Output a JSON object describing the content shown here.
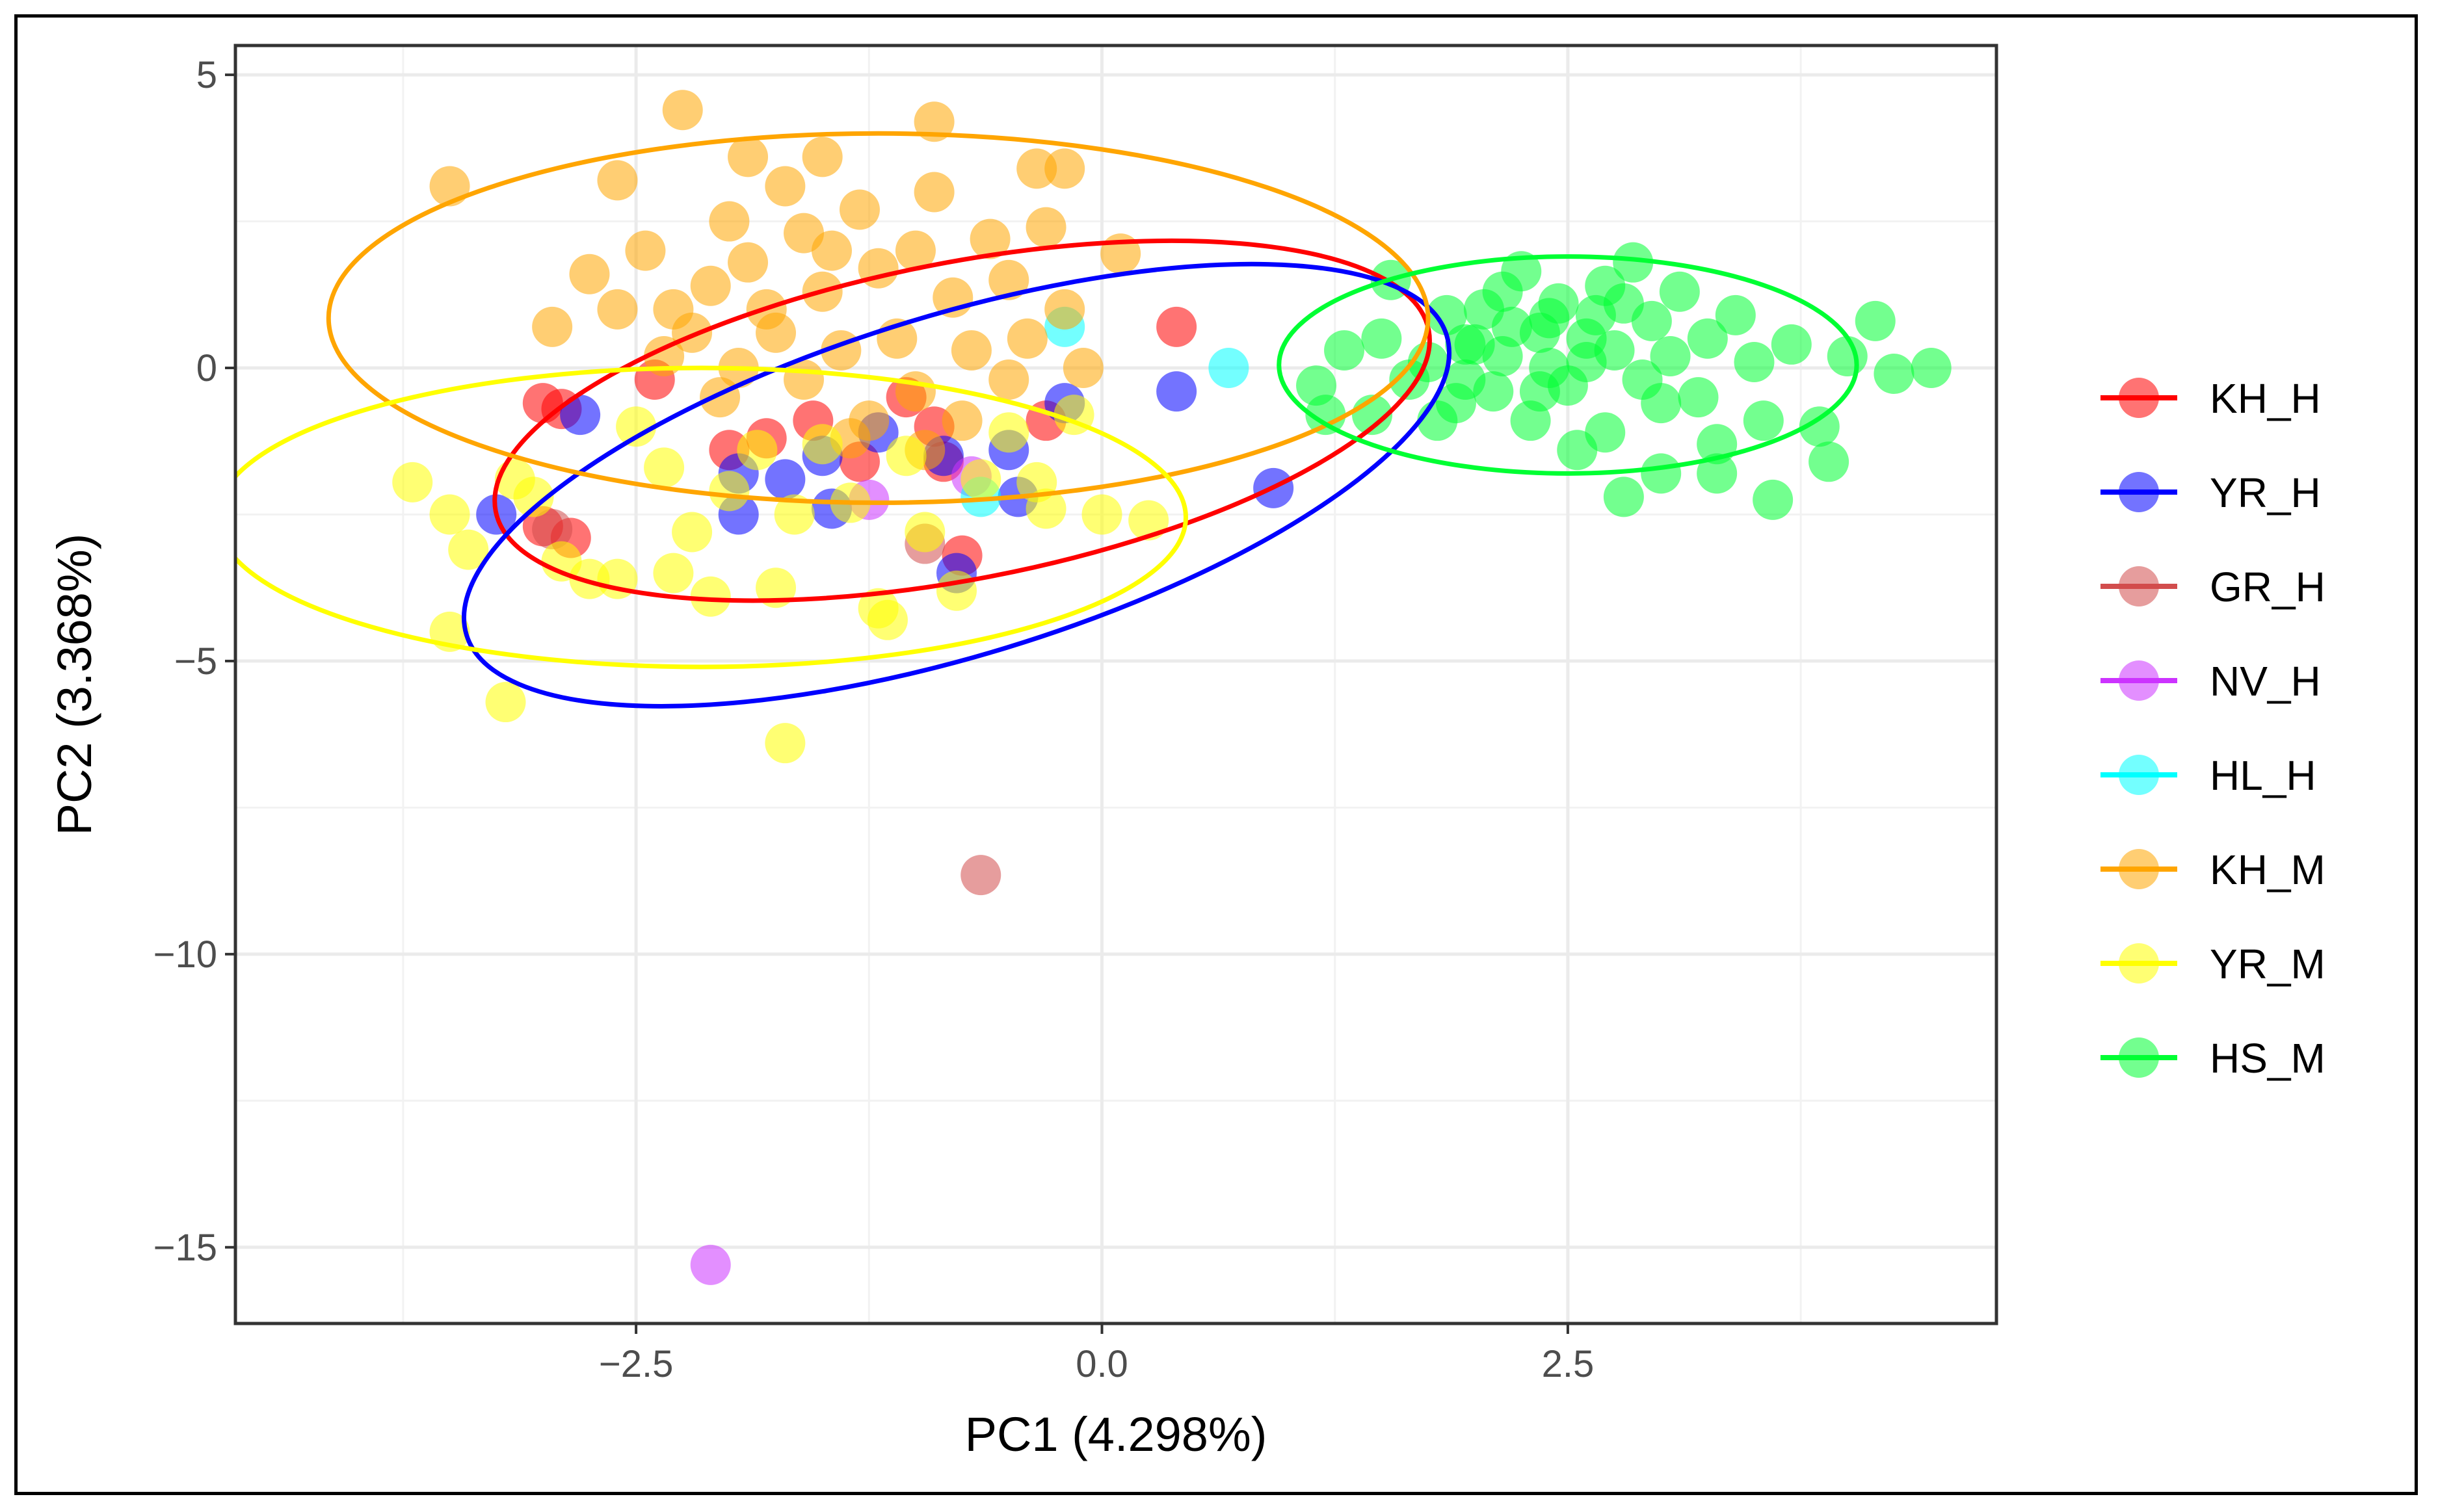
{
  "chart_data": {
    "type": "scatter",
    "subtype": "PCA score plot with 95% confidence ellipses",
    "xlabel": "PC1 (4.298%)",
    "ylabel": "PC2 (3.368%)",
    "xlim": [
      -4.65,
      4.8
    ],
    "ylim": [
      -16.3,
      5.5
    ],
    "x_ticks": [
      -2.5,
      0.0,
      2.5
    ],
    "x_tick_labels": [
      "−2.5",
      "0.0",
      "2.5"
    ],
    "y_ticks": [
      5,
      0,
      -5,
      -10,
      -15
    ],
    "y_tick_labels": [
      "5",
      "0",
      "−5",
      "−10",
      "−15"
    ],
    "grid": true,
    "legend_position": "right",
    "point_alpha": 0.55,
    "series": [
      {
        "name": "KH_H",
        "color": "#FF0000",
        "ellipse": {
          "cx": -0.75,
          "cy": -0.9,
          "rx": 2.55,
          "ry": 2.7,
          "angle_deg": 11
        },
        "points": [
          [
            -3.0,
            -0.6
          ],
          [
            -2.9,
            -0.7
          ],
          [
            -2.85,
            -2.9
          ],
          [
            -3.0,
            -2.7
          ],
          [
            -2.4,
            -0.2
          ],
          [
            -1.55,
            -0.9
          ],
          [
            -1.3,
            -1.6
          ],
          [
            -1.05,
            -0.5
          ],
          [
            -0.9,
            -1.0
          ],
          [
            -0.85,
            -1.6
          ],
          [
            -0.75,
            -3.2
          ],
          [
            -0.3,
            -0.9
          ],
          [
            0.4,
            0.7
          ],
          [
            -2.0,
            -1.4
          ],
          [
            -1.8,
            -1.2
          ]
        ]
      },
      {
        "name": "YR_H",
        "color": "#0000FF",
        "ellipse": {
          "cx": -0.78,
          "cy": -2.0,
          "rx": 2.75,
          "ry": 2.9,
          "angle_deg": 17
        },
        "points": [
          [
            -3.25,
            -2.5
          ],
          [
            -2.8,
            -0.8
          ],
          [
            -1.95,
            -1.8
          ],
          [
            -1.95,
            -2.5
          ],
          [
            -1.5,
            -1.5
          ],
          [
            -1.45,
            -2.4
          ],
          [
            -0.85,
            -1.5
          ],
          [
            -0.78,
            -3.5
          ],
          [
            -0.5,
            -1.4
          ],
          [
            -0.45,
            -2.2
          ],
          [
            0.4,
            -0.4
          ],
          [
            0.92,
            -2.05
          ],
          [
            -1.2,
            -1.1
          ],
          [
            -0.2,
            -0.6
          ],
          [
            -1.7,
            -1.9
          ]
        ]
      },
      {
        "name": "GR_H",
        "color": "#D24D4D",
        "points": [
          [
            -0.65,
            -8.65
          ],
          [
            -0.95,
            -3.0
          ],
          [
            -2.95,
            -2.75
          ]
        ]
      },
      {
        "name": "NV_H",
        "color": "#CC33FF",
        "points": [
          [
            -2.1,
            -15.3
          ],
          [
            -1.25,
            -2.25
          ],
          [
            -0.7,
            -1.85
          ]
        ]
      },
      {
        "name": "HL_H",
        "color": "#00FFFF",
        "points": [
          [
            0.68,
            0.0
          ],
          [
            -0.65,
            -2.2
          ],
          [
            -0.2,
            0.7
          ]
        ]
      },
      {
        "name": "KH_M",
        "color": "#FFA500",
        "ellipse": {
          "cx": -1.2,
          "cy": 0.85,
          "rx": 2.95,
          "ry": 3.15,
          "angle_deg": 0
        },
        "points": [
          [
            -2.95,
            0.7
          ],
          [
            -2.75,
            1.6
          ],
          [
            -2.6,
            1.0
          ],
          [
            -2.45,
            2.0
          ],
          [
            -2.3,
            1.0
          ],
          [
            -2.2,
            0.6
          ],
          [
            -2.1,
            1.4
          ],
          [
            -2.0,
            2.5
          ],
          [
            -1.9,
            1.8
          ],
          [
            -1.8,
            1.0
          ],
          [
            -1.7,
            3.1
          ],
          [
            -1.6,
            2.3
          ],
          [
            -1.5,
            1.3
          ],
          [
            -1.4,
            0.3
          ],
          [
            -1.3,
            2.7
          ],
          [
            -1.2,
            1.7
          ],
          [
            -1.1,
            0.5
          ],
          [
            -1.0,
            2.0
          ],
          [
            -0.9,
            3.0
          ],
          [
            -0.8,
            1.2
          ],
          [
            -0.7,
            0.3
          ],
          [
            -0.6,
            2.2
          ],
          [
            -0.5,
            1.5
          ],
          [
            -0.4,
            0.5
          ],
          [
            -0.3,
            2.4
          ],
          [
            -0.2,
            1.0
          ],
          [
            -0.1,
            0.0
          ],
          [
            0.1,
            1.95
          ],
          [
            -2.25,
            4.4
          ],
          [
            -0.9,
            4.2
          ],
          [
            -3.5,
            3.1
          ],
          [
            -1.9,
            3.6
          ],
          [
            -1.5,
            3.6
          ],
          [
            -2.35,
            0.2
          ],
          [
            -1.95,
            0.0
          ],
          [
            -1.6,
            -0.2
          ],
          [
            -1.25,
            -0.9
          ],
          [
            -1.0,
            -0.4
          ],
          [
            -0.75,
            -0.9
          ],
          [
            -0.5,
            -0.2
          ],
          [
            -0.35,
            3.4
          ],
          [
            -2.6,
            3.2
          ],
          [
            -1.45,
            2.0
          ],
          [
            -1.75,
            0.6
          ],
          [
            -2.05,
            -0.5
          ],
          [
            -0.95,
            -1.4
          ],
          [
            -1.35,
            -1.2
          ],
          [
            -0.2,
            3.4
          ]
        ]
      },
      {
        "name": "YR_M",
        "color": "#FFFF00",
        "ellipse": {
          "cx": -2.15,
          "cy": -2.55,
          "rx": 2.6,
          "ry": 2.55,
          "angle_deg": 0
        },
        "points": [
          [
            -3.7,
            -1.95
          ],
          [
            -3.5,
            -2.5
          ],
          [
            -3.4,
            -3.1
          ],
          [
            -3.15,
            -1.9
          ],
          [
            -3.05,
            -2.2
          ],
          [
            -2.9,
            -3.3
          ],
          [
            -2.75,
            -3.6
          ],
          [
            -2.5,
            -1.0
          ],
          [
            -2.35,
            -1.7
          ],
          [
            -2.3,
            -3.5
          ],
          [
            -2.2,
            -2.8
          ],
          [
            -2.1,
            -3.9
          ],
          [
            -2.0,
            -2.1
          ],
          [
            -1.85,
            -1.4
          ],
          [
            -1.75,
            -3.75
          ],
          [
            -1.65,
            -2.5
          ],
          [
            -1.5,
            -1.3
          ],
          [
            -1.35,
            -2.3
          ],
          [
            -1.2,
            -4.1
          ],
          [
            -1.15,
            -4.3
          ],
          [
            -1.05,
            -1.5
          ],
          [
            -0.95,
            -2.8
          ],
          [
            -0.78,
            -3.8
          ],
          [
            -0.65,
            -1.9
          ],
          [
            -0.5,
            -1.1
          ],
          [
            -0.3,
            -2.4
          ],
          [
            -0.15,
            -0.8
          ],
          [
            0.0,
            -2.5
          ],
          [
            0.25,
            -2.6
          ],
          [
            -3.5,
            -4.5
          ],
          [
            -3.2,
            -5.7
          ],
          [
            -1.7,
            -6.4
          ],
          [
            -2.6,
            -3.6
          ],
          [
            -0.35,
            -1.95
          ]
        ]
      },
      {
        "name": "HS_M",
        "color": "#00FF33",
        "ellipse": {
          "cx": 2.5,
          "cy": 0.05,
          "rx": 1.55,
          "ry": 1.85,
          "angle_deg": 0
        },
        "points": [
          [
            1.15,
            -0.3
          ],
          [
            1.2,
            -0.8
          ],
          [
            1.3,
            0.3
          ],
          [
            1.45,
            -0.8
          ],
          [
            1.5,
            0.5
          ],
          [
            1.55,
            1.5
          ],
          [
            1.65,
            -0.2
          ],
          [
            1.75,
            0.1
          ],
          [
            1.85,
            0.9
          ],
          [
            1.9,
            -0.6
          ],
          [
            1.95,
            -0.2
          ],
          [
            2.0,
            0.4
          ],
          [
            2.05,
            1.0
          ],
          [
            2.1,
            -0.4
          ],
          [
            2.15,
            0.2
          ],
          [
            2.2,
            0.7
          ],
          [
            2.25,
            1.65
          ],
          [
            2.3,
            -0.9
          ],
          [
            2.35,
            0.6
          ],
          [
            2.4,
            0.0
          ],
          [
            2.45,
            1.1
          ],
          [
            2.5,
            -0.3
          ],
          [
            2.55,
            -1.4
          ],
          [
            2.6,
            0.5
          ],
          [
            2.65,
            0.9
          ],
          [
            2.7,
            -1.1
          ],
          [
            2.75,
            0.3
          ],
          [
            2.8,
            1.1
          ],
          [
            2.85,
            1.8
          ],
          [
            2.9,
            -0.2
          ],
          [
            2.95,
            0.8
          ],
          [
            3.0,
            -0.6
          ],
          [
            3.05,
            0.2
          ],
          [
            3.1,
            1.3
          ],
          [
            3.2,
            -0.5
          ],
          [
            3.25,
            0.5
          ],
          [
            3.3,
            -1.3
          ],
          [
            3.4,
            0.9
          ],
          [
            3.5,
            0.1
          ],
          [
            3.55,
            -0.9
          ],
          [
            3.6,
            -2.25
          ],
          [
            3.7,
            0.4
          ],
          [
            3.85,
            -1.0
          ],
          [
            3.9,
            -1.6
          ],
          [
            4.0,
            0.2
          ],
          [
            4.15,
            0.8
          ],
          [
            4.25,
            -0.1
          ],
          [
            4.45,
            0.0
          ],
          [
            2.8,
            -2.2
          ],
          [
            3.0,
            -1.8
          ],
          [
            3.3,
            -1.8
          ],
          [
            2.15,
            1.3
          ],
          [
            2.35,
            -0.4
          ],
          [
            2.6,
            0.1
          ],
          [
            1.95,
            0.4
          ],
          [
            2.4,
            0.85
          ],
          [
            1.8,
            -0.9
          ],
          [
            2.7,
            1.4
          ]
        ]
      }
    ]
  }
}
